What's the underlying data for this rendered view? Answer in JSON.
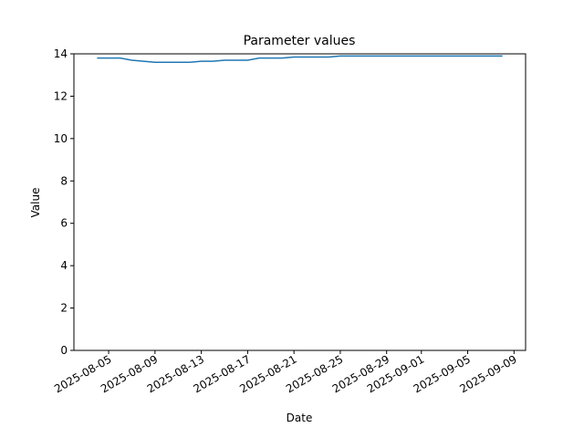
{
  "chart_data": {
    "type": "line",
    "title": "Parameter values",
    "x_label": "Date",
    "y_label": "Value",
    "x": [
      "2025-08-04",
      "2025-08-05",
      "2025-08-06",
      "2025-08-07",
      "2025-08-08",
      "2025-08-09",
      "2025-08-10",
      "2025-08-11",
      "2025-08-12",
      "2025-08-13",
      "2025-08-14",
      "2025-08-15",
      "2025-08-16",
      "2025-08-17",
      "2025-08-18",
      "2025-08-19",
      "2025-08-20",
      "2025-08-21",
      "2025-08-22",
      "2025-08-23",
      "2025-08-24",
      "2025-08-25",
      "2025-08-26",
      "2025-08-27",
      "2025-08-28",
      "2025-08-29",
      "2025-08-30",
      "2025-08-31",
      "2025-09-01",
      "2025-09-02",
      "2025-09-03",
      "2025-09-04",
      "2025-09-05",
      "2025-09-06",
      "2025-09-07",
      "2025-09-08"
    ],
    "series": [
      {
        "name": "Value",
        "color": "#1f77b4",
        "values": [
          13.8,
          13.8,
          13.8,
          13.7,
          13.65,
          13.6,
          13.6,
          13.6,
          13.6,
          13.65,
          13.65,
          13.7,
          13.7,
          13.7,
          13.8,
          13.8,
          13.8,
          13.85,
          13.85,
          13.85,
          13.85,
          13.9,
          13.9,
          13.9,
          13.9,
          13.9,
          13.9,
          13.9,
          13.9,
          13.9,
          13.9,
          13.9,
          13.9,
          13.9,
          13.9,
          13.9
        ]
      }
    ],
    "xlim": [
      "2025-08-02",
      "2025-09-10"
    ],
    "xticks": [
      "2025-08-05",
      "2025-08-09",
      "2025-08-13",
      "2025-08-17",
      "2025-08-21",
      "2025-08-25",
      "2025-08-29",
      "2025-09-01",
      "2025-09-05",
      "2025-09-09"
    ],
    "ylim": [
      0,
      14
    ],
    "yticks": [
      0,
      2,
      4,
      6,
      8,
      10,
      12,
      14
    ],
    "grid": false
  }
}
